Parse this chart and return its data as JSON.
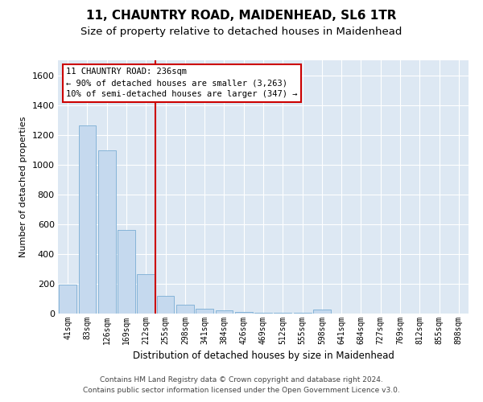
{
  "title": "11, CHAUNTRY ROAD, MAIDENHEAD, SL6 1TR",
  "subtitle": "Size of property relative to detached houses in Maidenhead",
  "xlabel": "Distribution of detached houses by size in Maidenhead",
  "ylabel": "Number of detached properties",
  "categories": [
    "41sqm",
    "83sqm",
    "126sqm",
    "169sqm",
    "212sqm",
    "255sqm",
    "298sqm",
    "341sqm",
    "384sqm",
    "426sqm",
    "469sqm",
    "512sqm",
    "555sqm",
    "598sqm",
    "641sqm",
    "684sqm",
    "727sqm",
    "769sqm",
    "812sqm",
    "855sqm",
    "898sqm"
  ],
  "values": [
    195,
    1265,
    1095,
    560,
    265,
    120,
    60,
    30,
    20,
    12,
    8,
    5,
    3,
    25,
    0,
    0,
    0,
    0,
    0,
    0,
    0
  ],
  "bar_color": "#c5d9ee",
  "bar_edge_color": "#7aadd4",
  "vline_position": 4.5,
  "annotation_line1": "11 CHAUNTRY ROAD: 236sqm",
  "annotation_line2": "← 90% of detached houses are smaller (3,263)",
  "annotation_line3": "10% of semi-detached houses are larger (347) →",
  "vline_color": "#cc0000",
  "annotation_edge_color": "#cc0000",
  "annotation_bg": "#ffffff",
  "ylim": [
    0,
    1700
  ],
  "yticks": [
    0,
    200,
    400,
    600,
    800,
    1000,
    1200,
    1400,
    1600
  ],
  "background_color": "#dde8f3",
  "grid_color": "#ffffff",
  "footer1": "Contains HM Land Registry data © Crown copyright and database right 2024.",
  "footer2": "Contains public sector information licensed under the Open Government Licence v3.0.",
  "title_fontsize": 11,
  "subtitle_fontsize": 9.5,
  "xlabel_fontsize": 8.5,
  "ylabel_fontsize": 8,
  "tick_fontsize": 7,
  "footer_fontsize": 6.5,
  "annotation_fontsize": 7.5
}
